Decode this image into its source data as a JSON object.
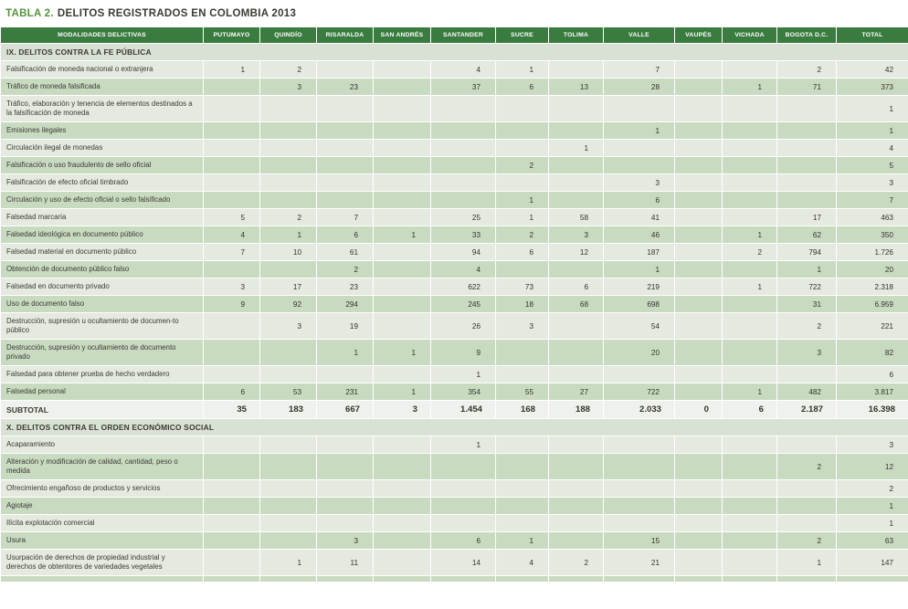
{
  "title": {
    "prefix": "TABLA 2.",
    "rest": "DELITOS REGISTRADOS EN COLOMBIA 2013"
  },
  "colors": {
    "header_bg": "#3a7c3f",
    "row_light": "#e4eadf",
    "row_dark": "#c8dbc1",
    "section_bg": "#d9e1d4",
    "subtotal_bg": "#eff2ec",
    "title_accent": "#55943e"
  },
  "table": {
    "columns": [
      "MODALIDADES DELICTIVAS",
      "PUTUMAYO",
      "QUINDÍO",
      "RISARALDA",
      "SAN ANDRÉS",
      "SANTANDER",
      "SUCRE",
      "TOLIMA",
      "VALLE",
      "VAUPÉS",
      "VICHADA",
      "BOGOTA D.C.",
      "TOTAL"
    ],
    "sections": [
      {
        "header": "IX. DELITOS CONTRA LA FE PÚBLICA",
        "rows": [
          {
            "label": "Falsificación de moneda nacional o extranjera",
            "values": [
              "1",
              "2",
              "",
              "",
              "4",
              "1",
              "",
              "7",
              "",
              "",
              "2",
              "42"
            ]
          },
          {
            "label": "Tráfico de moneda falsificada",
            "values": [
              "",
              "3",
              "23",
              "",
              "37",
              "6",
              "13",
              "28",
              "",
              "1",
              "71",
              "373"
            ]
          },
          {
            "label": "Tráfico, elaboración y tenencia de elementos destinados a la falsificación de moneda",
            "values": [
              "",
              "",
              "",
              "",
              "",
              "",
              "",
              "",
              "",
              "",
              "",
              "1"
            ]
          },
          {
            "label": "Emisiones ilegales",
            "values": [
              "",
              "",
              "",
              "",
              "",
              "",
              "",
              "1",
              "",
              "",
              "",
              "1"
            ]
          },
          {
            "label": "Circulación ilegal de monedas",
            "values": [
              "",
              "",
              "",
              "",
              "",
              "",
              "1",
              "",
              "",
              "",
              "",
              "4"
            ]
          },
          {
            "label": "Falsificación o uso fraudulento de sello oficial",
            "values": [
              "",
              "",
              "",
              "",
              "",
              "2",
              "",
              "",
              "",
              "",
              "",
              "5"
            ]
          },
          {
            "label": "Falsificación de efecto oficial timbrado",
            "values": [
              "",
              "",
              "",
              "",
              "",
              "",
              "",
              "3",
              "",
              "",
              "",
              "3"
            ]
          },
          {
            "label": "Circulación y uso de efecto oficial o sello falsificado",
            "values": [
              "",
              "",
              "",
              "",
              "",
              "1",
              "",
              "6",
              "",
              "",
              "",
              "7"
            ]
          },
          {
            "label": "Falsedad marcaria",
            "values": [
              "5",
              "2",
              "7",
              "",
              "25",
              "1",
              "58",
              "41",
              "",
              "",
              "17",
              "463"
            ]
          },
          {
            "label": "Falsedad ideológica en documento público",
            "values": [
              "4",
              "1",
              "6",
              "1",
              "33",
              "2",
              "3",
              "46",
              "",
              "1",
              "62",
              "350"
            ]
          },
          {
            "label": "Falsedad material en documento público",
            "values": [
              "7",
              "10",
              "61",
              "",
              "94",
              "6",
              "12",
              "187",
              "",
              "2",
              "794",
              "1.726"
            ]
          },
          {
            "label": "Obtención de documento público falso",
            "values": [
              "",
              "",
              "2",
              "",
              "4",
              "",
              "",
              "1",
              "",
              "",
              "1",
              "20"
            ]
          },
          {
            "label": "Falsedad en documento privado",
            "values": [
              "3",
              "17",
              "23",
              "",
              "622",
              "73",
              "6",
              "219",
              "",
              "1",
              "722",
              "2.318"
            ]
          },
          {
            "label": "Uso de documento falso",
            "values": [
              "9",
              "92",
              "294",
              "",
              "245",
              "18",
              "68",
              "698",
              "",
              "",
              "31",
              "6.959"
            ]
          },
          {
            "label": "Destrucción, supresión u ocultamiento de documen-to público",
            "values": [
              "",
              "3",
              "19",
              "",
              "26",
              "3",
              "",
              "54",
              "",
              "",
              "2",
              "221"
            ]
          },
          {
            "label": "Destrucción, supresión y ocultamiento de documento privado",
            "values": [
              "",
              "",
              "1",
              "1",
              "9",
              "",
              "",
              "20",
              "",
              "",
              "3",
              "82"
            ]
          },
          {
            "label": "Falsedad para obtener prueba de hecho verdadero",
            "values": [
              "",
              "",
              "",
              "",
              "1",
              "",
              "",
              "",
              "",
              "",
              "",
              "6"
            ]
          },
          {
            "label": "Falsedad personal",
            "values": [
              "6",
              "53",
              "231",
              "1",
              "354",
              "55",
              "27",
              "722",
              "",
              "1",
              "482",
              "3.817"
            ]
          }
        ],
        "subtotal": {
          "label": "SUBTOTAL",
          "values": [
            "35",
            "183",
            "667",
            "3",
            "1.454",
            "168",
            "188",
            "2.033",
            "0",
            "6",
            "2.187",
            "16.398"
          ]
        }
      },
      {
        "header": "X. DELITOS CONTRA EL ORDEN ECONÓMICO  SOCIAL",
        "rows": [
          {
            "label": "Acaparamiento",
            "values": [
              "",
              "",
              "",
              "",
              "1",
              "",
              "",
              "",
              "",
              "",
              "",
              "3"
            ]
          },
          {
            "label": "Alteración y modificación de calidad, cantidad, peso o medida",
            "values": [
              "",
              "",
              "",
              "",
              "",
              "",
              "",
              "",
              "",
              "",
              "2",
              "12"
            ]
          },
          {
            "label": "Ofrecimiento engañoso de productos y servicios",
            "values": [
              "",
              "",
              "",
              "",
              "",
              "",
              "",
              "",
              "",
              "",
              "",
              "2"
            ]
          },
          {
            "label": "Agiotaje",
            "values": [
              "",
              "",
              "",
              "",
              "",
              "",
              "",
              "",
              "",
              "",
              "",
              "1"
            ]
          },
          {
            "label": "Ilícita explotación comercial",
            "values": [
              "",
              "",
              "",
              "",
              "",
              "",
              "",
              "",
              "",
              "",
              "",
              "1"
            ]
          },
          {
            "label": "Usura",
            "values": [
              "",
              "",
              "3",
              "",
              "6",
              "1",
              "",
              "15",
              "",
              "",
              "2",
              "63"
            ]
          },
          {
            "label": "Usurpación de derechos de propiedad industrial y derechos de obtentores de variedades vegetales",
            "values": [
              "",
              "1",
              "11",
              "",
              "14",
              "4",
              "2",
              "21",
              "",
              "",
              "1",
              "147"
            ]
          }
        ]
      }
    ]
  }
}
